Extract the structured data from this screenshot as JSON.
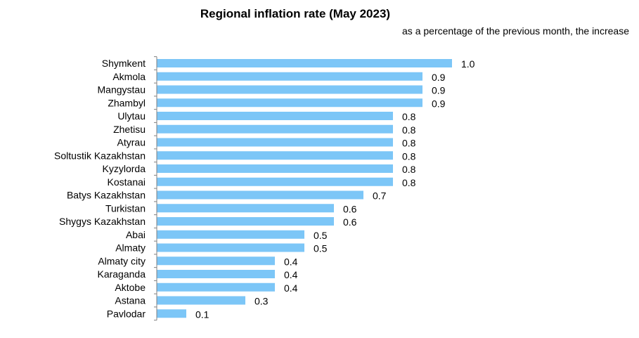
{
  "chart_data": {
    "type": "bar",
    "orientation": "horizontal",
    "title": "Regional inflation rate (May 2023)",
    "subtitle": "as a percentage of the previous month, the increase",
    "xlabel": "",
    "ylabel": "",
    "xlim": [
      0,
      1.0
    ],
    "grid": false,
    "legend": "none",
    "bar_color": "#7cc6f7",
    "axis_color": "#808080",
    "categories": [
      "Shymkent",
      "Akmola",
      "Mangystau",
      "Zhambyl",
      "Ulytau",
      "Zhetisu",
      "Atyrau",
      "Soltustik Kazakhstan",
      "Kyzylorda",
      "Kostanai",
      "Batys Kazakhstan",
      "Turkistan",
      "Shygys Kazakhstan",
      "Abai",
      "Almaty",
      "Almaty city",
      "Karaganda",
      "Aktobe",
      "Astana",
      "Pavlodar"
    ],
    "values": [
      1.0,
      0.9,
      0.9,
      0.9,
      0.8,
      0.8,
      0.8,
      0.8,
      0.8,
      0.8,
      0.7,
      0.6,
      0.6,
      0.5,
      0.5,
      0.4,
      0.4,
      0.4,
      0.3,
      0.1
    ],
    "value_labels": [
      "1.0",
      "0.9",
      "0.9",
      "0.9",
      "0.8",
      "0.8",
      "0.8",
      "0.8",
      "0.8",
      "0.8",
      "0.7",
      "0.6",
      "0.6",
      "0.5",
      "0.5",
      "0.4",
      "0.4",
      "0.4",
      "0.3",
      "0.1"
    ]
  }
}
